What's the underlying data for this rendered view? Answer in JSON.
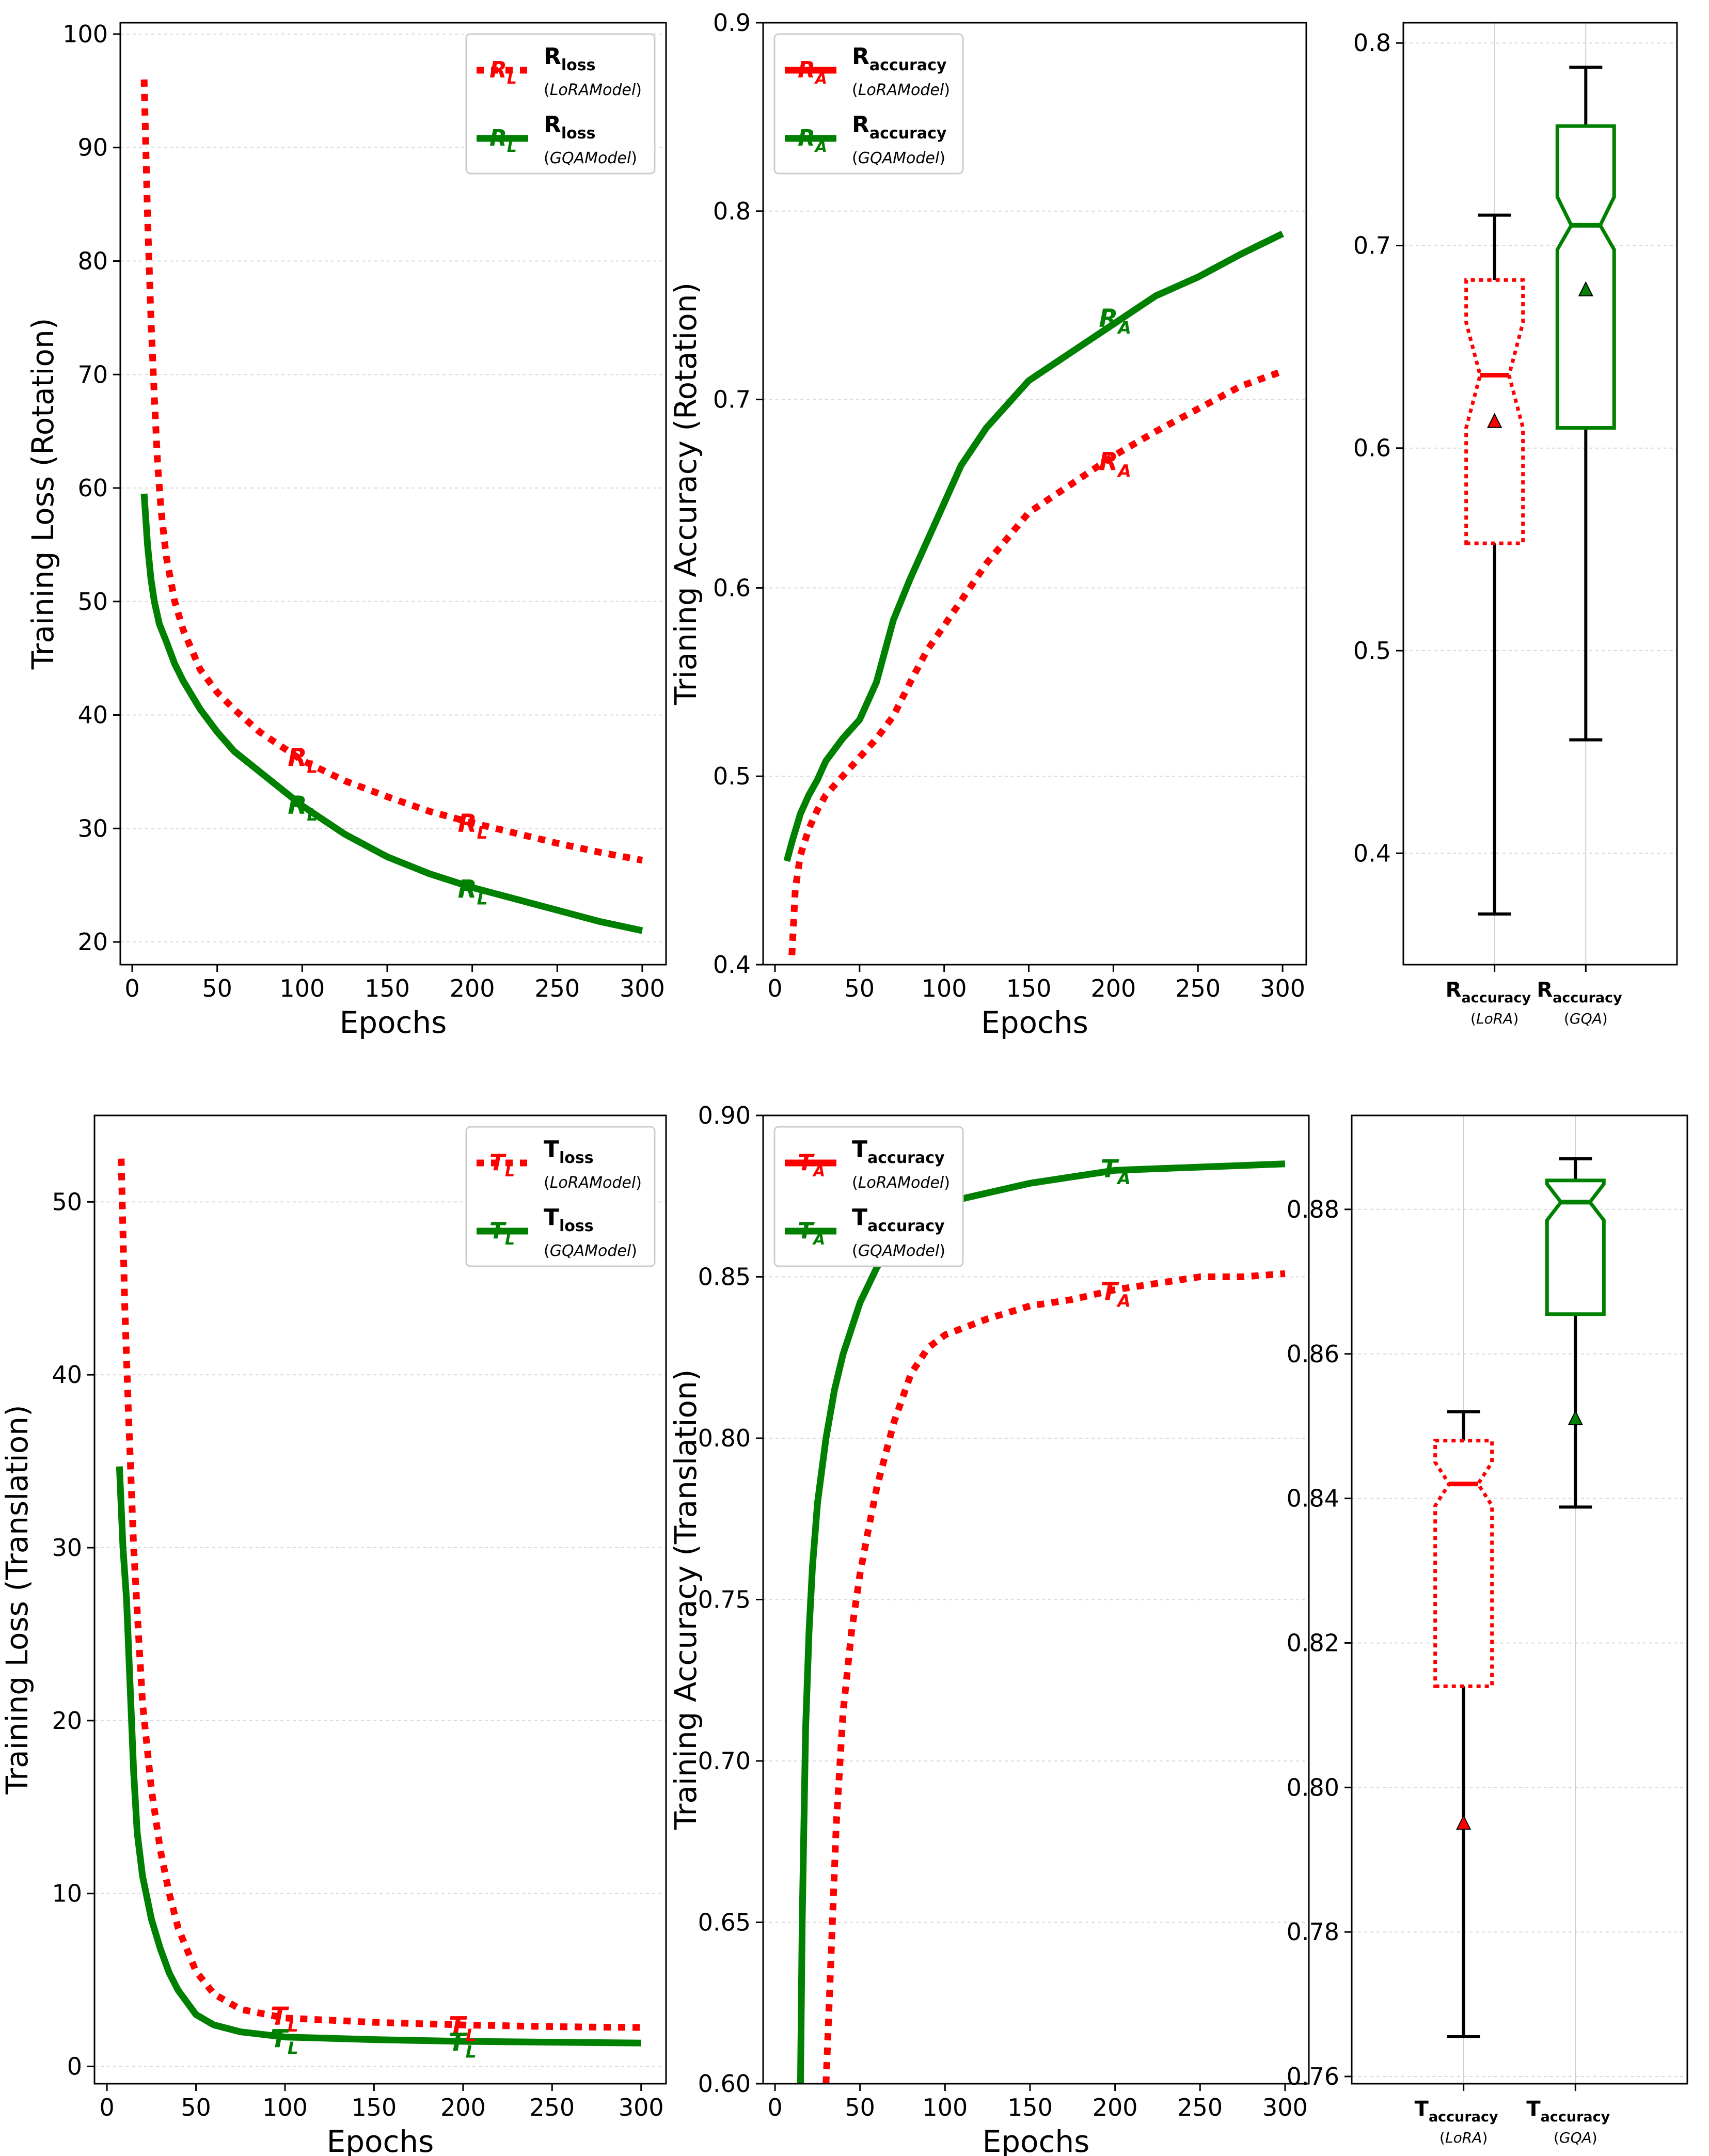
{
  "colors": {
    "lora": "#ff0000",
    "gqa": "#008000",
    "whisker": "#000000",
    "grid": "#d9d9d9"
  },
  "chart_data": [
    {
      "id": "rot-loss",
      "type": "line",
      "xlabel": "Epochs",
      "ylabel": "Training Loss (Rotation)",
      "xlim": [
        -7,
        314
      ],
      "ylim": [
        18,
        101
      ],
      "xticks": [
        0,
        50,
        100,
        150,
        200,
        250,
        300
      ],
      "yticks": [
        20,
        30,
        40,
        50,
        60,
        70,
        80,
        90,
        100
      ],
      "legend_position": "top-right",
      "legend": [
        {
          "marker_main": "R",
          "marker_sub": "L",
          "name_main": "R",
          "name_sub": "loss",
          "model": "LoRAModel",
          "color_key": "lora",
          "dashed": true
        },
        {
          "marker_main": "R",
          "marker_sub": "L",
          "name_main": "R",
          "name_sub": "loss",
          "model": "GQAModel",
          "color_key": "gqa",
          "dashed": false
        }
      ],
      "series": [
        {
          "color_key": "lora",
          "dashed": true,
          "x": [
            7,
            9,
            11,
            13,
            15,
            17,
            20,
            25,
            30,
            40,
            50,
            60,
            75,
            100,
            125,
            150,
            175,
            200,
            225,
            250,
            275,
            300
          ],
          "y": [
            96,
            84,
            75,
            68,
            62,
            58,
            54,
            50,
            47.5,
            44,
            42,
            40.5,
            38.5,
            36,
            34.2,
            32.8,
            31.5,
            30.5,
            29.6,
            28.7,
            27.9,
            27.2
          ]
        },
        {
          "color_key": "gqa",
          "dashed": false,
          "x": [
            7,
            9,
            11,
            13,
            16,
            20,
            25,
            30,
            40,
            50,
            60,
            75,
            100,
            125,
            150,
            175,
            200,
            225,
            250,
            275,
            300
          ],
          "y": [
            59.5,
            55,
            52,
            50,
            48,
            46.5,
            44.5,
            43,
            40.5,
            38.5,
            36.8,
            35,
            32,
            29.5,
            27.5,
            26,
            24.8,
            23.8,
            22.8,
            21.8,
            21
          ]
        }
      ],
      "annotations": [
        {
          "x": 100,
          "y": 36.4,
          "main": "R",
          "sub": "L",
          "color_key": "lora"
        },
        {
          "x": 200,
          "y": 30.6,
          "main": "R",
          "sub": "L",
          "color_key": "lora"
        },
        {
          "x": 100,
          "y": 32.2,
          "main": "R",
          "sub": "L",
          "color_key": "gqa"
        },
        {
          "x": 200,
          "y": 24.8,
          "main": "R",
          "sub": "L",
          "color_key": "gqa"
        }
      ]
    },
    {
      "id": "rot-acc",
      "type": "line",
      "xlabel": "Epochs",
      "ylabel": "Trianing Accuracy (Rotation)",
      "xlim": [
        -7,
        314
      ],
      "ylim": [
        0.4,
        0.9
      ],
      "xticks": [
        0,
        50,
        100,
        150,
        200,
        250,
        300
      ],
      "yticks": [
        0.4,
        0.5,
        0.6,
        0.7,
        0.8,
        0.9
      ],
      "legend_position": "top-left",
      "legend": [
        {
          "marker_main": "R",
          "marker_sub": "A",
          "name_main": "R",
          "name_sub": "accuracy",
          "model": "LoRAModel",
          "color_key": "lora",
          "dashed": false
        },
        {
          "marker_main": "R",
          "marker_sub": "A",
          "name_main": "R",
          "name_sub": "accuracy",
          "model": "GQAModel",
          "color_key": "gqa",
          "dashed": false
        }
      ],
      "series": [
        {
          "color_key": "lora",
          "dashed": true,
          "x": [
            10,
            12,
            15,
            20,
            25,
            30,
            40,
            50,
            60,
            70,
            80,
            90,
            100,
            125,
            150,
            175,
            200,
            225,
            250,
            275,
            300
          ],
          "y": [
            0.405,
            0.44,
            0.458,
            0.472,
            0.482,
            0.49,
            0.5,
            0.51,
            0.52,
            0.532,
            0.55,
            0.567,
            0.58,
            0.613,
            0.64,
            0.655,
            0.67,
            0.683,
            0.695,
            0.707,
            0.715
          ]
        },
        {
          "color_key": "gqa",
          "dashed": false,
          "x": [
            7,
            10,
            15,
            20,
            25,
            30,
            40,
            50,
            60,
            70,
            80,
            90,
            100,
            110,
            125,
            150,
            175,
            200,
            225,
            250,
            275,
            300
          ],
          "y": [
            0.455,
            0.465,
            0.48,
            0.49,
            0.498,
            0.508,
            0.52,
            0.53,
            0.55,
            0.583,
            0.605,
            0.625,
            0.645,
            0.665,
            0.685,
            0.71,
            0.725,
            0.74,
            0.755,
            0.765,
            0.777,
            0.788
          ]
        }
      ],
      "annotations": [
        {
          "x": 200,
          "y": 0.668,
          "main": "R",
          "sub": "A",
          "color_key": "lora"
        },
        {
          "x": 200,
          "y": 0.744,
          "main": "R",
          "sub": "A",
          "color_key": "gqa"
        }
      ]
    },
    {
      "id": "rot-box",
      "type": "box",
      "ylim": [
        0.345,
        0.81
      ],
      "yticks": [
        0.4,
        0.5,
        0.6,
        0.7,
        0.8
      ],
      "boxes": [
        {
          "label_main": "R",
          "label_sub": "accuracy",
          "label_model": "LoRA",
          "color_key": "lora",
          "dashed": true,
          "whisker_low": 0.37,
          "q1": 0.553,
          "median": 0.636,
          "q3": 0.683,
          "whisker_high": 0.715,
          "notch_low": 0.61,
          "notch_high": 0.662,
          "mean": 0.613
        },
        {
          "label_main": "R",
          "label_sub": "accuracy",
          "label_model": "GQA",
          "color_key": "gqa",
          "dashed": false,
          "whisker_low": 0.456,
          "q1": 0.61,
          "median": 0.71,
          "q3": 0.759,
          "whisker_high": 0.788,
          "notch_low": 0.698,
          "notch_high": 0.724,
          "mean": 0.678
        }
      ]
    },
    {
      "id": "trans-loss",
      "type": "line",
      "xlabel": "Epochs",
      "ylabel": "Training Loss (Translation)",
      "xlim": [
        -7,
        314
      ],
      "ylim": [
        -1,
        55
      ],
      "xticks": [
        0,
        50,
        100,
        150,
        200,
        250,
        300
      ],
      "yticks": [
        0,
        10,
        20,
        30,
        40,
        50
      ],
      "legend_position": "top-right",
      "legend": [
        {
          "marker_main": "T",
          "marker_sub": "L",
          "name_main": "T",
          "name_sub": "loss",
          "model": "LoRAModel",
          "color_key": "lora",
          "dashed": true
        },
        {
          "marker_main": "T",
          "marker_sub": "L",
          "name_main": "T",
          "name_sub": "loss",
          "model": "GQAModel",
          "color_key": "gqa",
          "dashed": false
        }
      ],
      "series": [
        {
          "color_key": "lora",
          "dashed": true,
          "x": [
            8,
            10,
            12,
            15,
            18,
            20,
            25,
            30,
            35,
            40,
            50,
            60,
            75,
            100,
            150,
            200,
            250,
            300
          ],
          "y": [
            52.5,
            44,
            38,
            30,
            24.5,
            21,
            16,
            12.5,
            10,
            8,
            5.5,
            4.2,
            3.3,
            2.8,
            2.55,
            2.4,
            2.3,
            2.25
          ]
        },
        {
          "color_key": "gqa",
          "dashed": false,
          "x": [
            7,
            9,
            11,
            13,
            15,
            17,
            20,
            25,
            30,
            35,
            40,
            50,
            60,
            75,
            100,
            150,
            200,
            250,
            300
          ],
          "y": [
            34.7,
            30,
            27,
            22,
            17,
            13.5,
            11,
            8.5,
            6.8,
            5.4,
            4.4,
            3,
            2.4,
            2,
            1.7,
            1.55,
            1.45,
            1.4,
            1.35
          ]
        }
      ],
      "annotations": [
        {
          "x": 100,
          "y": 3.0,
          "main": "T",
          "sub": "L",
          "color_key": "lora"
        },
        {
          "x": 200,
          "y": 2.45,
          "main": "T",
          "sub": "L",
          "color_key": "lora"
        },
        {
          "x": 100,
          "y": 1.7,
          "main": "T",
          "sub": "L",
          "color_key": "gqa"
        },
        {
          "x": 200,
          "y": 1.5,
          "main": "T",
          "sub": "L",
          "color_key": "gqa"
        }
      ]
    },
    {
      "id": "trans-acc",
      "type": "line",
      "xlabel": "Epochs",
      "ylabel": "Training Accuracy (Translation)",
      "xlim": [
        -7,
        314
      ],
      "ylim": [
        0.6,
        0.9
      ],
      "xticks": [
        0,
        50,
        100,
        150,
        200,
        250,
        300
      ],
      "yticks": [
        0.6,
        0.65,
        0.7,
        0.75,
        0.8,
        0.85,
        0.9
      ],
      "legend_position": "top-left",
      "legend": [
        {
          "marker_main": "T",
          "marker_sub": "A",
          "name_main": "T",
          "name_sub": "accuracy",
          "model": "LoRAModel",
          "color_key": "lora",
          "dashed": false
        },
        {
          "marker_main": "T",
          "marker_sub": "A",
          "name_main": "T",
          "name_sub": "accuracy",
          "model": "GQAModel",
          "color_key": "gqa",
          "dashed": false
        }
      ],
      "series": [
        {
          "color_key": "lora",
          "dashed": true,
          "x": [
            30,
            33,
            36,
            40,
            45,
            50,
            55,
            60,
            70,
            80,
            90,
            100,
            125,
            150,
            175,
            200,
            225,
            250,
            275,
            300
          ],
          "y": [
            0.6,
            0.64,
            0.68,
            0.715,
            0.74,
            0.758,
            0.772,
            0.785,
            0.805,
            0.82,
            0.828,
            0.832,
            0.837,
            0.841,
            0.843,
            0.846,
            0.848,
            0.85,
            0.85,
            0.851
          ]
        },
        {
          "color_key": "gqa",
          "dashed": false,
          "x": [
            15,
            16,
            18,
            20,
            22,
            25,
            30,
            35,
            40,
            50,
            60,
            70,
            80,
            90,
            100,
            125,
            150,
            175,
            200,
            250,
            300
          ],
          "y": [
            0.6,
            0.65,
            0.71,
            0.74,
            0.76,
            0.78,
            0.8,
            0.815,
            0.826,
            0.842,
            0.853,
            0.861,
            0.866,
            0.87,
            0.873,
            0.876,
            0.879,
            0.881,
            0.883,
            0.884,
            0.885
          ]
        }
      ],
      "annotations": [
        {
          "x": 200,
          "y": 0.846,
          "main": "T",
          "sub": "A",
          "color_key": "lora"
        },
        {
          "x": 200,
          "y": 0.884,
          "main": "T",
          "sub": "A",
          "color_key": "gqa"
        }
      ]
    },
    {
      "id": "trans-box",
      "type": "box",
      "ylim": [
        0.759,
        0.893
      ],
      "yticks": [
        0.76,
        0.78,
        0.8,
        0.82,
        0.84,
        0.86,
        0.88
      ],
      "boxes": [
        {
          "label_main": "T",
          "label_sub": "accuracy",
          "label_model": "LoRA",
          "color_key": "lora",
          "dashed": true,
          "whisker_low": 0.7655,
          "q1": 0.814,
          "median": 0.842,
          "q3": 0.848,
          "whisker_high": 0.852,
          "notch_low": 0.839,
          "notch_high": 0.845,
          "mean": 0.795
        },
        {
          "label_main": "T",
          "label_sub": "accuracy",
          "label_model": "GQA",
          "color_key": "gqa",
          "dashed": false,
          "whisker_low": 0.8388,
          "q1": 0.8655,
          "median": 0.881,
          "q3": 0.884,
          "whisker_high": 0.887,
          "notch_low": 0.8785,
          "notch_high": 0.8835,
          "mean": 0.851
        }
      ]
    }
  ]
}
